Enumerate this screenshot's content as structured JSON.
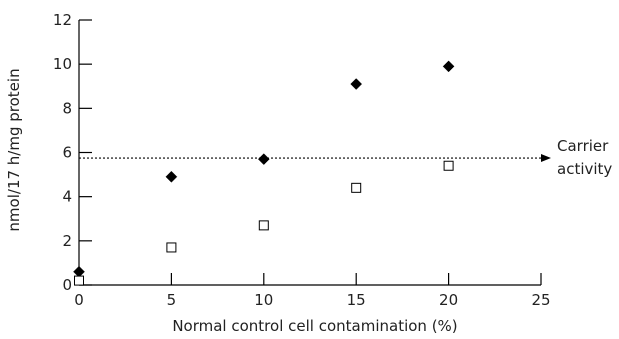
{
  "chart_data": {
    "type": "scatter",
    "title": "",
    "xlabel": "Normal control cell contamination (%)",
    "ylabel": "nmol/17 h/mg protein",
    "xlim": [
      0,
      25
    ],
    "ylim": [
      0,
      12
    ],
    "x_ticks": [
      0,
      5,
      10,
      15,
      20,
      25
    ],
    "y_ticks": [
      0,
      2,
      4,
      6,
      8,
      10,
      12
    ],
    "x_tick_labels": [
      "0",
      "5",
      "10",
      "15",
      "20",
      "25"
    ],
    "y_tick_labels": [
      "0",
      "2",
      "4",
      "6",
      "8",
      "10",
      "12"
    ],
    "grid": false,
    "legend": "none",
    "series": [
      {
        "marker": "filled-diamond",
        "color": "#000000",
        "x": [
          0,
          5,
          10,
          15,
          20
        ],
        "y": [
          0.6,
          4.9,
          5.7,
          9.1,
          9.9
        ]
      },
      {
        "marker": "open-square",
        "color": "#000000",
        "x": [
          0,
          5,
          10,
          15,
          20
        ],
        "y": [
          0.2,
          1.7,
          2.7,
          4.4,
          5.4
        ]
      }
    ],
    "reference_line": {
      "y": 5.75,
      "style": "dotted-arrow",
      "label_lines": [
        "Carrier",
        "activity"
      ]
    }
  }
}
